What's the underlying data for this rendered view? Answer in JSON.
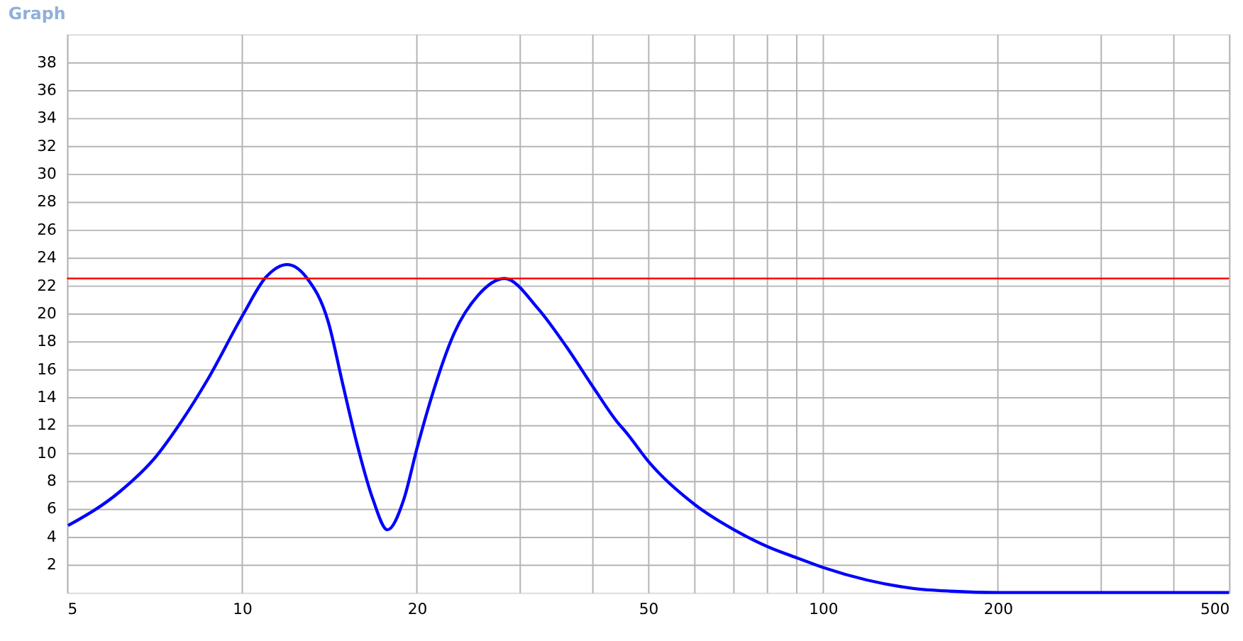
{
  "chart_data": {
    "type": "line",
    "title": "Graph",
    "log": "x",
    "grid": true,
    "xlim": [
      5,
      500
    ],
    "xticks": [
      5,
      10,
      20,
      {
        "value": 30,
        "label": null
      },
      {
        "value": 40,
        "label": null
      },
      50,
      {
        "value": 60,
        "label": null
      },
      {
        "value": 70,
        "label": null
      },
      {
        "value": 80,
        "label": null
      },
      {
        "value": 90,
        "label": null
      },
      100,
      200,
      {
        "value": 300,
        "label": null
      },
      {
        "value": 400,
        "label": null
      },
      500
    ],
    "ylim": [
      0,
      40
    ],
    "yticks": [
      2,
      4,
      6,
      8,
      10,
      12,
      14,
      16,
      18,
      20,
      22,
      24,
      26,
      28,
      30,
      32,
      34,
      36,
      38
    ],
    "ref_lines": [
      {
        "axis": "y",
        "value": 22.5,
        "color": "#ff0000"
      }
    ],
    "series": [
      {
        "color": "#0000ff",
        "x": [
          5.02,
          6.15,
          7.13,
          7.82,
          8.74,
          10.04,
          11.0,
          11.96,
          12.9,
          14.1,
          14.9,
          15.7,
          16.8,
          17.8,
          19.0,
          20.0,
          21.2,
          23.2,
          25.5,
          28.3,
          32.4,
          36.2,
          40.4,
          44.3,
          45.8,
          50.3,
          60.2,
          70.3,
          80.2,
          90,
          100,
          119,
          143,
          166,
          200,
          500
        ],
        "values": [
          4.8,
          7.2,
          9.8,
          12.1,
          15.3,
          19.9,
          22.6,
          23.5,
          22.6,
          19.3,
          15.0,
          11.0,
          6.7,
          4.5,
          6.7,
          10.3,
          14.0,
          18.6,
          21.3,
          22.5,
          20.3,
          17.6,
          14.6,
          12.2,
          11.5,
          9.3,
          6.3,
          4.5,
          3.3,
          2.5,
          1.8,
          0.9,
          0.3,
          0.1,
          0,
          0
        ]
      }
    ]
  }
}
